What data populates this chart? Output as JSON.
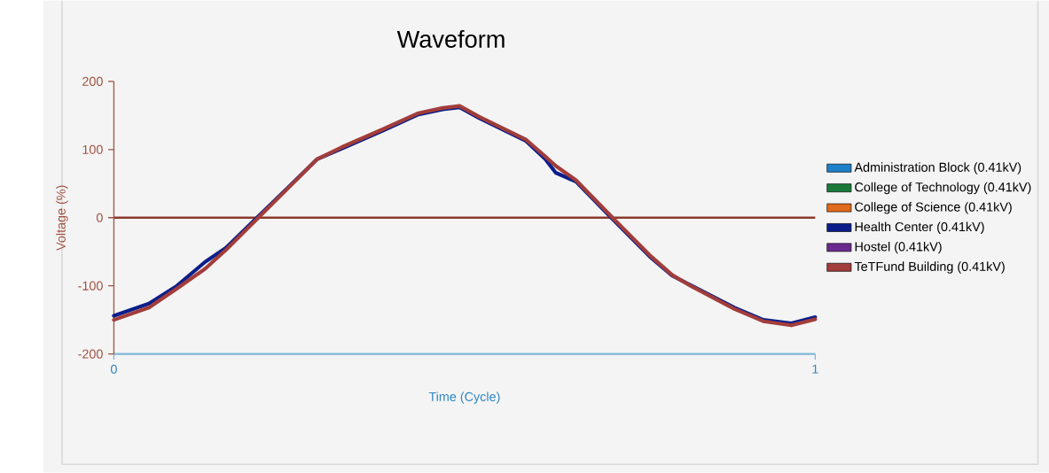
{
  "chart_data": {
    "type": "line",
    "title": "Waveform",
    "xlabel": "Time (Cycle)",
    "ylabel": "Voltage (%)",
    "xlim": [
      0,
      1
    ],
    "ylim": [
      -200,
      200
    ],
    "xticks": [
      0,
      1
    ],
    "yticks": [
      -200,
      -100,
      0,
      100,
      200
    ],
    "legend": "right",
    "line_style": "solid",
    "x": [
      0,
      0.05,
      0.09,
      0.13,
      0.16,
      0.206,
      0.25,
      0.29,
      0.324,
      0.384,
      0.433,
      0.469,
      0.493,
      0.521,
      0.587,
      0.615,
      0.63,
      0.659,
      0.711,
      0.764,
      0.796,
      0.824,
      0.885,
      0.926,
      0.966,
      1
    ],
    "ref_lines": [
      {
        "axis": "y",
        "value": 0,
        "color": "#8b3a2e"
      }
    ],
    "series": [
      {
        "name": "Administration Block (0.41kV)",
        "color": "#1f7fc9",
        "values": [
          null,
          null,
          null,
          null,
          null,
          null,
          null,
          null,
          null,
          null,
          null,
          null,
          null,
          null,
          null,
          null,
          null,
          null,
          null,
          null,
          null,
          null,
          null,
          null,
          null,
          null
        ]
      },
      {
        "name": "College  of Technology (0.41kV)",
        "color": "#1a7a3a",
        "values": [
          null,
          null,
          null,
          null,
          null,
          null,
          null,
          null,
          null,
          null,
          null,
          null,
          null,
          null,
          null,
          null,
          null,
          null,
          null,
          null,
          null,
          null,
          null,
          null,
          null,
          null
        ]
      },
      {
        "name": "College of Science (0.41kV)",
        "color": "#e06a1b",
        "values": [
          null,
          null,
          null,
          null,
          null,
          null,
          null,
          null,
          null,
          null,
          null,
          null,
          null,
          null,
          null,
          null,
          null,
          null,
          null,
          null,
          null,
          null,
          null,
          null,
          null,
          null
        ]
      },
      {
        "name": "Health Center (0.41kV)",
        "color": "#0b1f8a",
        "values": [
          -144,
          -126,
          -100,
          -65,
          -44,
          2,
          46,
          86,
          101,
          128,
          151,
          159,
          162,
          146,
          113,
          86,
          66,
          53,
          -2,
          -57,
          -85,
          -100,
          -132,
          -150,
          -155,
          -146
        ]
      },
      {
        "name": "Hostel (0.41kV)",
        "color": "#6b2a8e",
        "values": [
          null,
          null,
          null,
          null,
          null,
          null,
          null,
          null,
          null,
          null,
          null,
          null,
          null,
          null,
          null,
          null,
          null,
          null,
          null,
          null,
          null,
          null,
          null,
          null,
          null,
          null
        ]
      },
      {
        "name": "TeTFund Building (0.41kV)",
        "color": "#a23d3b",
        "values": [
          -150,
          -132,
          -104,
          -75,
          -47,
          0,
          45,
          86,
          103,
          130,
          153,
          161,
          164,
          148,
          115,
          90,
          76,
          55,
          0,
          -55,
          -84,
          -101,
          -134,
          -152,
          -158,
          -149
        ]
      }
    ]
  }
}
